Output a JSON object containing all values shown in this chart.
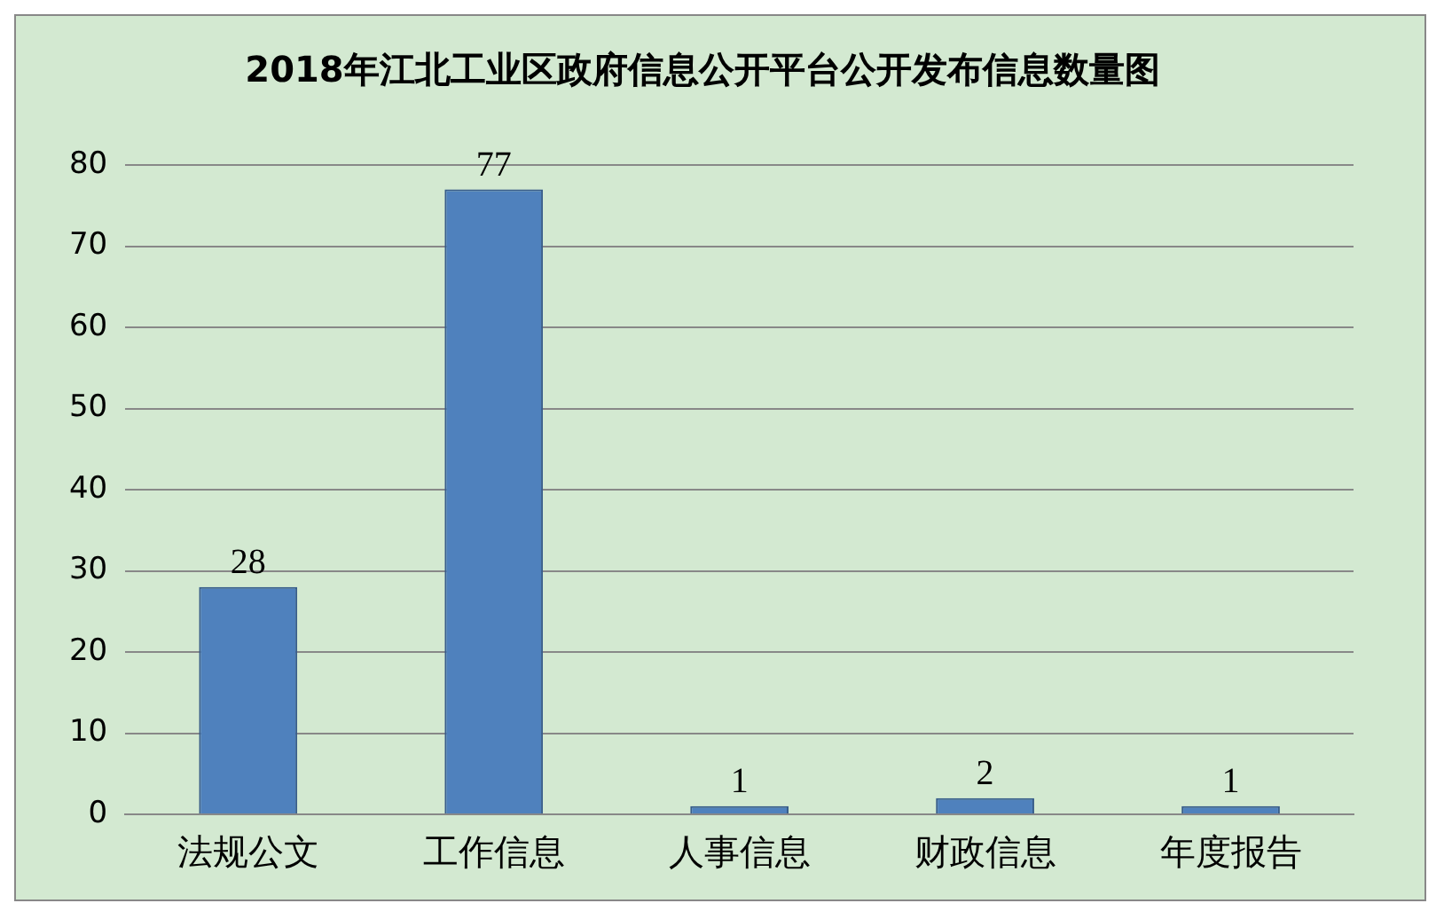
{
  "chart_data": {
    "type": "bar",
    "title": "2018年江北工业区政府信息公开平台公开发布信息数量图",
    "categories": [
      "法规公文",
      "工作信息",
      "人事信息",
      "财政信息",
      "年度报告"
    ],
    "values": [
      28,
      77,
      1,
      2,
      1
    ],
    "color": "#4f81bd",
    "ylim": [
      0,
      80
    ],
    "yticks": [
      0,
      10,
      20,
      30,
      40,
      50,
      60,
      70,
      80
    ],
    "grid": "y",
    "data_labels": true
  }
}
